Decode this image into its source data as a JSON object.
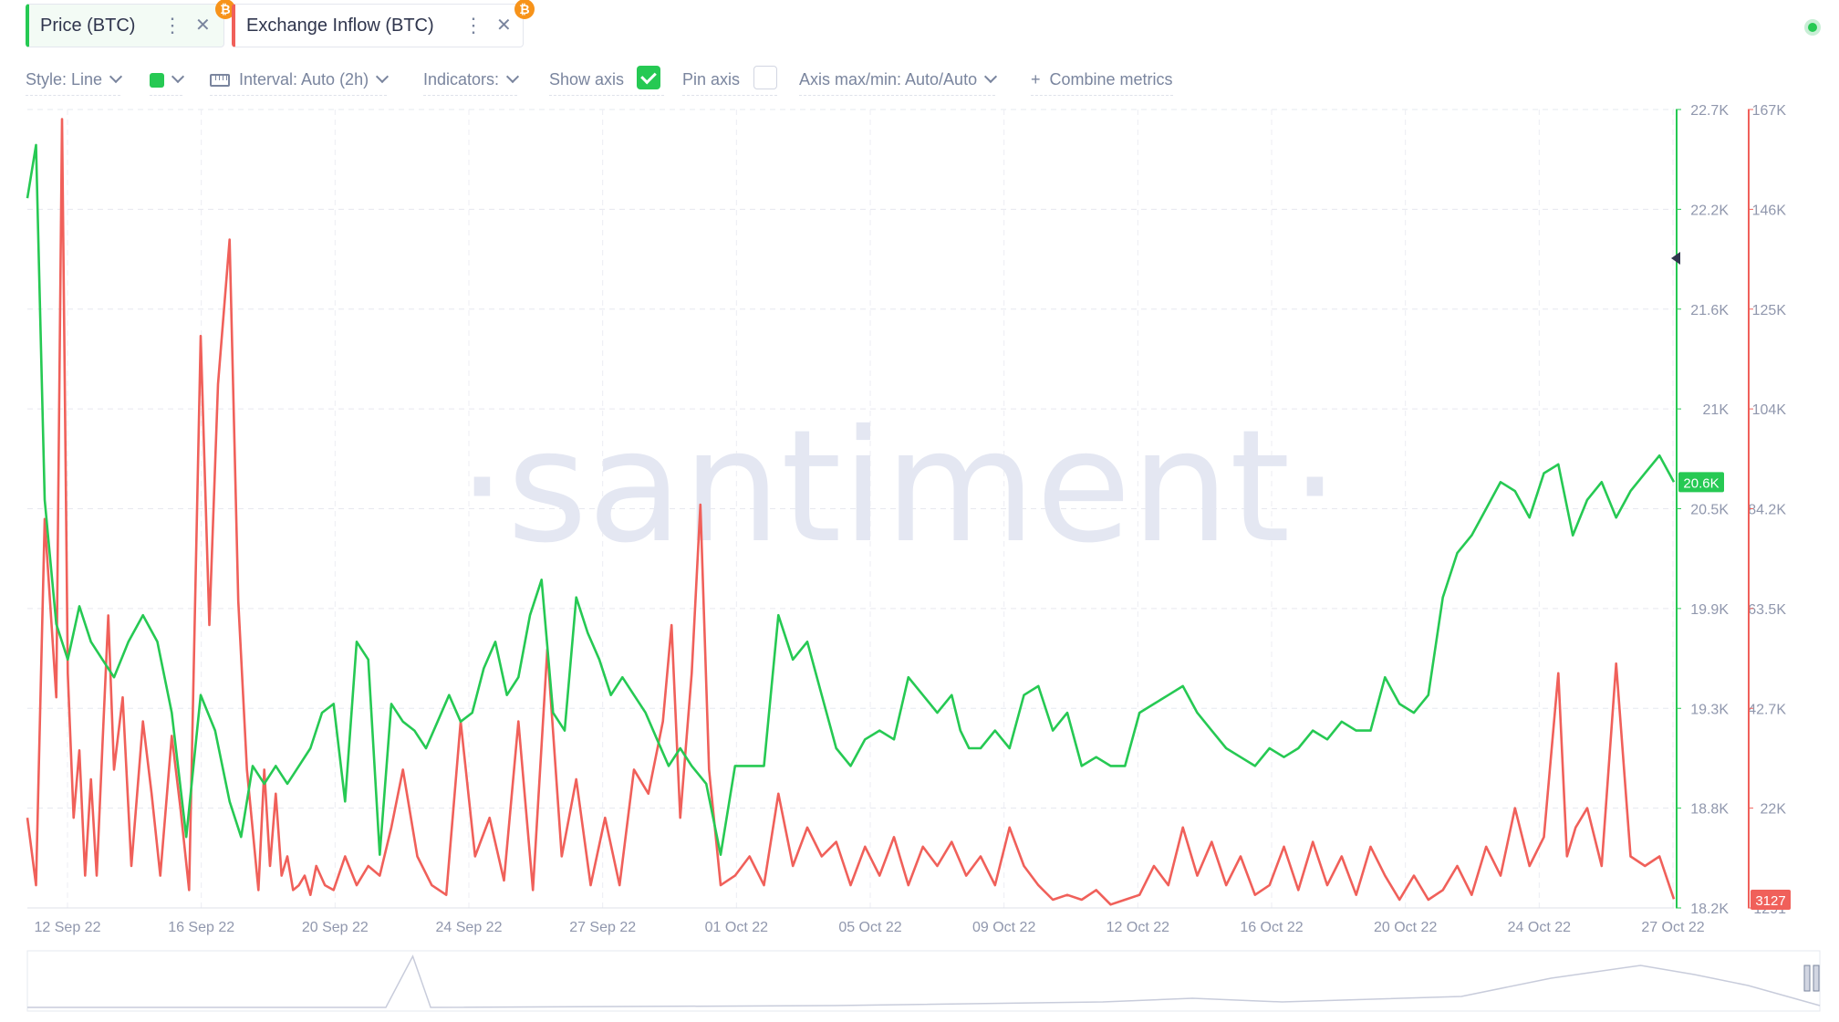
{
  "metrics": [
    {
      "label": "Price (BTC)",
      "color": "#26c953"
    },
    {
      "label": "Exchange Inflow (BTC)",
      "color": "#f0605a"
    }
  ],
  "toolbar": {
    "style": "Style: Line",
    "interval": "Interval: Auto (2h)",
    "indicators": "Indicators:",
    "show_axis": "Show axis",
    "show_axis_checked": true,
    "pin_axis": "Pin axis",
    "pin_axis_checked": false,
    "axis_maxmin": "Axis max/min: Auto/Auto",
    "combine": "Combine metrics",
    "swatch_color": "#26c953"
  },
  "chart_data": {
    "type": "line",
    "watermark": "·santiment·",
    "x_tick_labels": [
      "12 Sep 22",
      "16 Sep 22",
      "20 Sep 22",
      "24 Sep 22",
      "27 Sep 22",
      "01 Oct 22",
      "05 Oct 22",
      "09 Oct 22",
      "12 Oct 22",
      "16 Oct 22",
      "20 Oct 22",
      "24 Oct 22",
      "27 Oct 22"
    ],
    "price_axis": {
      "ticks": [
        "22.7K",
        "22.2K",
        "21.6K",
        "21K",
        "20.5K",
        "19.9K",
        "19.3K",
        "18.8K",
        "18.2K"
      ],
      "min": 18200,
      "max": 22700,
      "color": "#26c953",
      "current_label": "20.6K"
    },
    "inflow_axis": {
      "ticks": [
        "167K",
        "146K",
        "125K",
        "104K",
        "84.2K",
        "63.5K",
        "42.7K",
        "22K",
        "1291"
      ],
      "min": 1291,
      "max": 167000,
      "color": "#f0605a",
      "current_label": "3127"
    },
    "series": [
      {
        "name": "Price (BTC)",
        "color": "#26c953",
        "x": [
          11.0,
          11.3,
          11.6,
          12.0,
          12.4,
          12.8,
          13.2,
          13.6,
          14.0,
          14.5,
          15.0,
          15.5,
          16.0,
          16.5,
          17.0,
          17.5,
          18.0,
          18.4,
          18.8,
          19.2,
          19.6,
          20.0,
          20.4,
          20.8,
          21.2,
          21.6,
          22.0,
          22.4,
          22.8,
          23.2,
          23.6,
          24.0,
          24.4,
          24.8,
          25.2,
          25.6,
          26.0,
          26.4,
          26.8,
          27.2,
          27.6,
          28.0,
          28.4,
          28.8,
          29.2,
          29.6,
          30.0,
          30.4,
          30.8,
          31.2,
          31.6,
          32.0,
          32.4,
          32.8,
          33.2,
          33.6,
          34.0,
          34.5,
          35.0,
          35.5,
          36.0,
          36.5,
          37.0,
          37.5,
          38.0,
          38.5,
          39.0,
          39.5,
          40.0,
          40.5,
          41.0,
          41.5,
          42.0,
          42.5,
          43.0,
          43.3,
          43.6,
          44.0,
          44.5,
          45.0,
          45.5,
          46.0,
          46.5,
          47.0,
          47.5,
          48.0,
          48.5,
          49.0,
          49.5,
          50.0,
          50.5,
          51.0,
          51.5,
          52.0,
          52.5,
          53.0,
          53.5,
          54.0,
          54.5,
          55.0,
          55.5,
          56.0,
          56.5,
          57.0,
          57.5,
          58.0,
          58.5,
          59.0,
          59.5,
          60.0,
          60.5,
          61.0,
          61.5,
          62.0,
          62.5,
          63.0,
          63.5,
          64.0,
          64.5,
          65.0,
          65.5,
          66.0,
          66.5,
          67.0,
          67.5,
          68.0
        ],
        "values": [
          22200,
          22500,
          20500,
          19800,
          19600,
          19900,
          19700,
          19600,
          19500,
          19700,
          19850,
          19700,
          19300,
          18600,
          19400,
          19200,
          18800,
          18600,
          19000,
          18900,
          19000,
          18900,
          19000,
          19100,
          19300,
          19350,
          18800,
          19700,
          19600,
          18500,
          19350,
          19250,
          19200,
          19100,
          19250,
          19400,
          19250,
          19300,
          19550,
          19700,
          19400,
          19500,
          19850,
          20050,
          19300,
          19200,
          19950,
          19750,
          19600,
          19400,
          19500,
          19400,
          19300,
          19150,
          19000,
          19100,
          19000,
          18900,
          18500,
          19000,
          19000,
          19000,
          19850,
          19600,
          19700,
          19400,
          19100,
          19000,
          19150,
          19200,
          19150,
          19500,
          19400,
          19300,
          19400,
          19200,
          19100,
          19100,
          19200,
          19100,
          19400,
          19450,
          19200,
          19300,
          19000,
          19050,
          19000,
          19000,
          19300,
          19350,
          19400,
          19450,
          19300,
          19200,
          19100,
          19050,
          19000,
          19100,
          19050,
          19100,
          19200,
          19150,
          19250,
          19200,
          19200,
          19500,
          19350,
          19300,
          19400,
          19950,
          20200,
          20300,
          20450,
          20600,
          20550,
          20400,
          20650,
          20700,
          20300,
          20500,
          20600,
          20400,
          20550,
          20650,
          20750,
          20600
        ]
      },
      {
        "name": "Exchange Inflow (BTC)",
        "color": "#f0605a",
        "x": [
          11.0,
          11.3,
          11.6,
          12.0,
          12.2,
          12.4,
          12.6,
          12.8,
          13.0,
          13.2,
          13.4,
          13.6,
          13.8,
          14.0,
          14.3,
          14.6,
          15.0,
          15.3,
          15.6,
          16.0,
          16.3,
          16.6,
          17.0,
          17.3,
          17.6,
          18.0,
          18.3,
          18.6,
          19.0,
          19.2,
          19.4,
          19.6,
          19.8,
          20.0,
          20.2,
          20.4,
          20.6,
          20.8,
          21.0,
          21.3,
          21.6,
          22.0,
          22.4,
          22.8,
          23.2,
          23.6,
          24.0,
          24.5,
          25.0,
          25.5,
          26.0,
          26.5,
          27.0,
          27.5,
          28.0,
          28.5,
          29.0,
          29.5,
          30.0,
          30.5,
          31.0,
          31.5,
          32.0,
          32.5,
          33.0,
          33.3,
          33.6,
          34.0,
          34.3,
          34.6,
          35.0,
          35.5,
          36.0,
          36.5,
          37.0,
          37.5,
          38.0,
          38.5,
          39.0,
          39.5,
          40.0,
          40.5,
          41.0,
          41.5,
          42.0,
          42.5,
          43.0,
          43.5,
          44.0,
          44.5,
          45.0,
          45.5,
          46.0,
          46.5,
          47.0,
          47.5,
          48.0,
          48.5,
          49.0,
          49.5,
          50.0,
          50.5,
          51.0,
          51.5,
          52.0,
          52.5,
          53.0,
          53.5,
          54.0,
          54.5,
          55.0,
          55.5,
          56.0,
          56.5,
          57.0,
          57.5,
          58.0,
          58.5,
          59.0,
          59.5,
          60.0,
          60.5,
          61.0,
          61.5,
          62.0,
          62.5,
          63.0,
          63.5,
          64.0,
          64.3,
          64.6,
          65.0,
          65.5,
          66.0,
          66.5,
          67.0,
          67.5,
          68.0
        ],
        "values": [
          20000,
          6000,
          82000,
          45000,
          165000,
          50000,
          20000,
          34000,
          8000,
          28000,
          8000,
          35000,
          62000,
          30000,
          45000,
          10000,
          40000,
          25000,
          8000,
          37000,
          22000,
          5000,
          120000,
          60000,
          110000,
          140000,
          65000,
          30000,
          5000,
          30000,
          10000,
          25000,
          8000,
          12000,
          5000,
          6000,
          8000,
          4000,
          10000,
          6000,
          5000,
          12000,
          6000,
          10000,
          8000,
          18000,
          30000,
          12000,
          6000,
          4000,
          40000,
          12000,
          20000,
          7000,
          40000,
          5000,
          55000,
          12000,
          28000,
          6000,
          20000,
          6000,
          30000,
          25000,
          40000,
          60000,
          20000,
          50000,
          85000,
          30000,
          6000,
          8000,
          12000,
          6000,
          25000,
          10000,
          18000,
          12000,
          15000,
          6000,
          14000,
          8000,
          16000,
          6000,
          14000,
          10000,
          15000,
          8000,
          12000,
          6000,
          18000,
          10000,
          6000,
          3000,
          4000,
          3000,
          5000,
          2000,
          3000,
          4000,
          10000,
          6000,
          18000,
          8000,
          15000,
          6000,
          12000,
          4000,
          6000,
          14000,
          5000,
          15000,
          6000,
          12000,
          4000,
          14000,
          8000,
          3000,
          8000,
          3000,
          5000,
          10000,
          4000,
          14000,
          8000,
          22000,
          10000,
          16000,
          50000,
          12000,
          18000,
          22000,
          10000,
          52000,
          12000,
          10000,
          12000,
          3127
        ]
      }
    ],
    "x_range": [
      11,
      68
    ]
  }
}
